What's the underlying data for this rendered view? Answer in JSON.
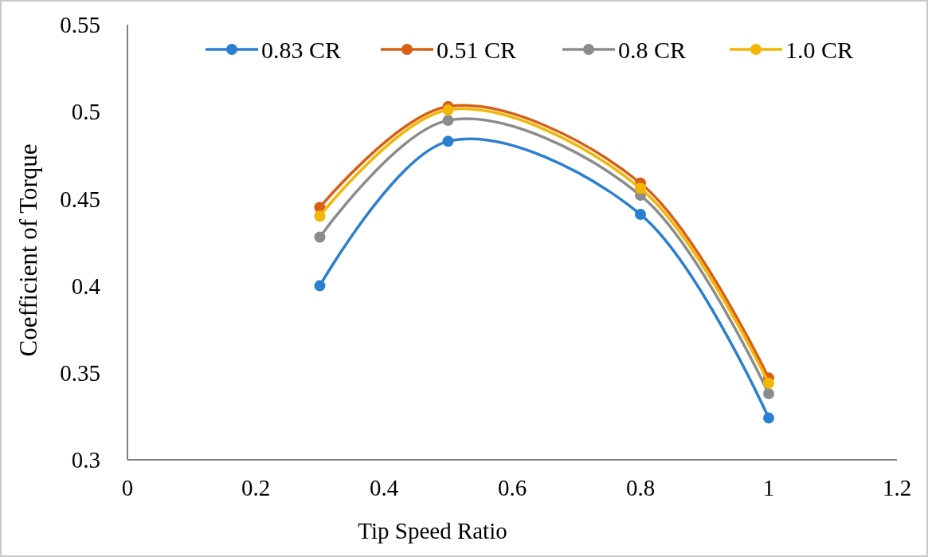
{
  "chart_data": {
    "type": "line",
    "xlabel": "Tip Speed Ratio",
    "ylabel": "Coefficient of Torque",
    "x": [
      0.3,
      0.5,
      0.8,
      1.0
    ],
    "series": [
      {
        "name": "0.83 CR",
        "color": "#2a7fd0",
        "values": [
          0.4,
          0.483,
          0.441,
          0.324
        ]
      },
      {
        "name": "0.51 CR",
        "color": "#d95f14",
        "values": [
          0.445,
          0.503,
          0.459,
          0.347
        ]
      },
      {
        "name": "0.8 CR",
        "color": "#8c8c8c",
        "values": [
          0.428,
          0.495,
          0.452,
          0.338
        ]
      },
      {
        "name": "1.0 CR",
        "color": "#f2b705",
        "values": [
          0.44,
          0.501,
          0.456,
          0.344
        ]
      }
    ],
    "xlim": [
      0,
      1.2
    ],
    "xticks": [
      0,
      0.2,
      0.4,
      0.6,
      0.8,
      1,
      1.2
    ],
    "ylim": [
      0.3,
      0.55
    ],
    "yticks": [
      0.3,
      0.35,
      0.4,
      0.45,
      0.5,
      0.55
    ],
    "grid": false,
    "legend": "top",
    "marker": "circle",
    "line_style": "solid"
  }
}
